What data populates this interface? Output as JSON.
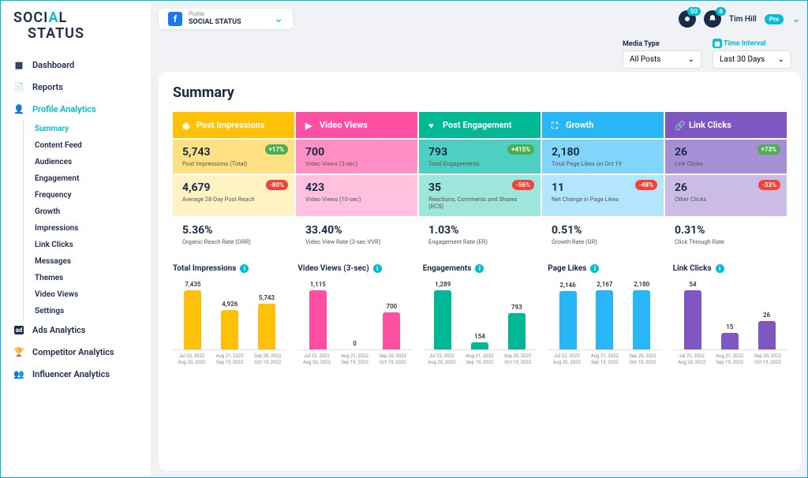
{
  "brand": {
    "line1_a": "SOCI",
    "line1_b": "A",
    "line1_c": "L",
    "line2": "STATUS"
  },
  "nav": [
    {
      "label": "Dashboard",
      "icon": "dashboard",
      "active": false
    },
    {
      "label": "Reports",
      "icon": "reports",
      "active": false
    },
    {
      "label": "Profile Analytics",
      "icon": "profile",
      "active": true
    },
    {
      "label": "Ads Analytics",
      "icon": "ads",
      "active": false
    },
    {
      "label": "Competitor Analytics",
      "icon": "trophy",
      "active": false
    },
    {
      "label": "Influencer Analytics",
      "icon": "people",
      "active": false
    }
  ],
  "subnav": [
    "Summary",
    "Content Feed",
    "Audiences",
    "Engagement",
    "Frequency",
    "Growth",
    "Impressions",
    "Link Clicks",
    "Messages",
    "Themes",
    "Video Views",
    "Settings"
  ],
  "subnav_active": "Summary",
  "profile": {
    "label": "Profile",
    "name": "SOCIAL STATUS"
  },
  "top": {
    "badge1": "50",
    "badge2": "6",
    "user": "Tim Hill",
    "plan": "Pro"
  },
  "filters": {
    "media_label": "Media Type",
    "media_value": "All Posts",
    "time_label": "Time Interval",
    "time_value": "Last 30 Days"
  },
  "title": "Summary",
  "columns": [
    {
      "name": "Post Impressions",
      "header_bg": "#ffc107",
      "r1_bg": "#ffe082",
      "r2_bg": "#fff3c4",
      "r3_bg": "#ffffff",
      "icon": "fingerprint"
    },
    {
      "name": "Video Views",
      "header_bg": "#ff4fa3",
      "r1_bg": "#ff8fc4",
      "r2_bg": "#ffc1de",
      "r3_bg": "#ffffff",
      "icon": "play"
    },
    {
      "name": "Post Engagement",
      "header_bg": "#00b894",
      "r1_bg": "#4dd0c1",
      "r2_bg": "#9ee5db",
      "r3_bg": "#ffffff",
      "icon": "heart"
    },
    {
      "name": "Growth",
      "header_bg": "#29b6f6",
      "r1_bg": "#81d4fa",
      "r2_bg": "#b3e5fc",
      "r3_bg": "#ffffff",
      "icon": "expand"
    },
    {
      "name": "Link Clicks",
      "header_bg": "#7e57c2",
      "r1_bg": "#a68fd4",
      "r2_bg": "#cbbce6",
      "r3_bg": "#ffffff",
      "icon": "link"
    }
  ],
  "rows": [
    [
      {
        "val": "5,743",
        "lbl": "Post Impressions (Total)",
        "pct": "+17%",
        "dir": "up"
      },
      {
        "val": "700",
        "lbl": "Video Views (3-sec)"
      },
      {
        "val": "793",
        "lbl": "Total Engagements",
        "pct": "+415%",
        "dir": "up"
      },
      {
        "val": "2,180",
        "lbl": "Total Page Likes on Oct 19"
      },
      {
        "val": "26",
        "lbl": "Link Clicks",
        "pct": "+73%",
        "dir": "up"
      }
    ],
    [
      {
        "val": "4,679",
        "lbl": "Average 28-Day Post Reach",
        "pct": "-80%",
        "dir": "dn"
      },
      {
        "val": "423",
        "lbl": "Video Views (10-sec)"
      },
      {
        "val": "35",
        "lbl": "Reactions, Comments and Shares (RCS)",
        "pct": "-56%",
        "dir": "dn"
      },
      {
        "val": "11",
        "lbl": "Net Change in Page Likes",
        "pct": "-48%",
        "dir": "dn"
      },
      {
        "val": "26",
        "lbl": "Other Clicks",
        "pct": "-33%",
        "dir": "dn"
      }
    ],
    [
      {
        "val": "5.36%",
        "lbl": "Organic Reach Rate (ORR)"
      },
      {
        "val": "33.40%",
        "lbl": "Video View Rate (3-sec VVR)"
      },
      {
        "val": "1.03%",
        "lbl": "Engagement Rate (ER)"
      },
      {
        "val": "0.51%",
        "lbl": "Growth Rate (GR)"
      },
      {
        "val": "0.31%",
        "lbl": "Click Through Rate"
      }
    ]
  ],
  "charts": [
    {
      "title": "Total Impressions",
      "color": "#ffc107",
      "values": [
        7435,
        4926,
        5743
      ],
      "max": 7435,
      "labels": [
        "7,435",
        "4,926",
        "5,743"
      ]
    },
    {
      "title": "Video Views (3-sec)",
      "color": "#ff4fa3",
      "values": [
        1115,
        0,
        700
      ],
      "max": 1115,
      "labels": [
        "1,115",
        "0",
        "700"
      ]
    },
    {
      "title": "Engagements",
      "color": "#00b894",
      "values": [
        1289,
        154,
        793
      ],
      "max": 1289,
      "labels": [
        "1,289",
        "154",
        "793"
      ]
    },
    {
      "title": "Page Likes",
      "color": "#29b6f6",
      "values": [
        2146,
        2167,
        2180
      ],
      "max": 2180,
      "labels": [
        "2,146",
        "2,167",
        "2,180"
      ]
    },
    {
      "title": "Link Clicks",
      "color": "#7e57c2",
      "values": [
        54,
        15,
        26
      ],
      "max": 54,
      "labels": [
        "54",
        "15",
        "26"
      ]
    }
  ],
  "xcats": [
    {
      "l1": "Jul 22, 2022",
      "l2": "Aug 20, 2022"
    },
    {
      "l1": "Aug 21, 2022",
      "l2": "Sep 19, 2022"
    },
    {
      "l1": "Sep 20, 2022",
      "l2": "Oct 19, 2022"
    }
  ]
}
